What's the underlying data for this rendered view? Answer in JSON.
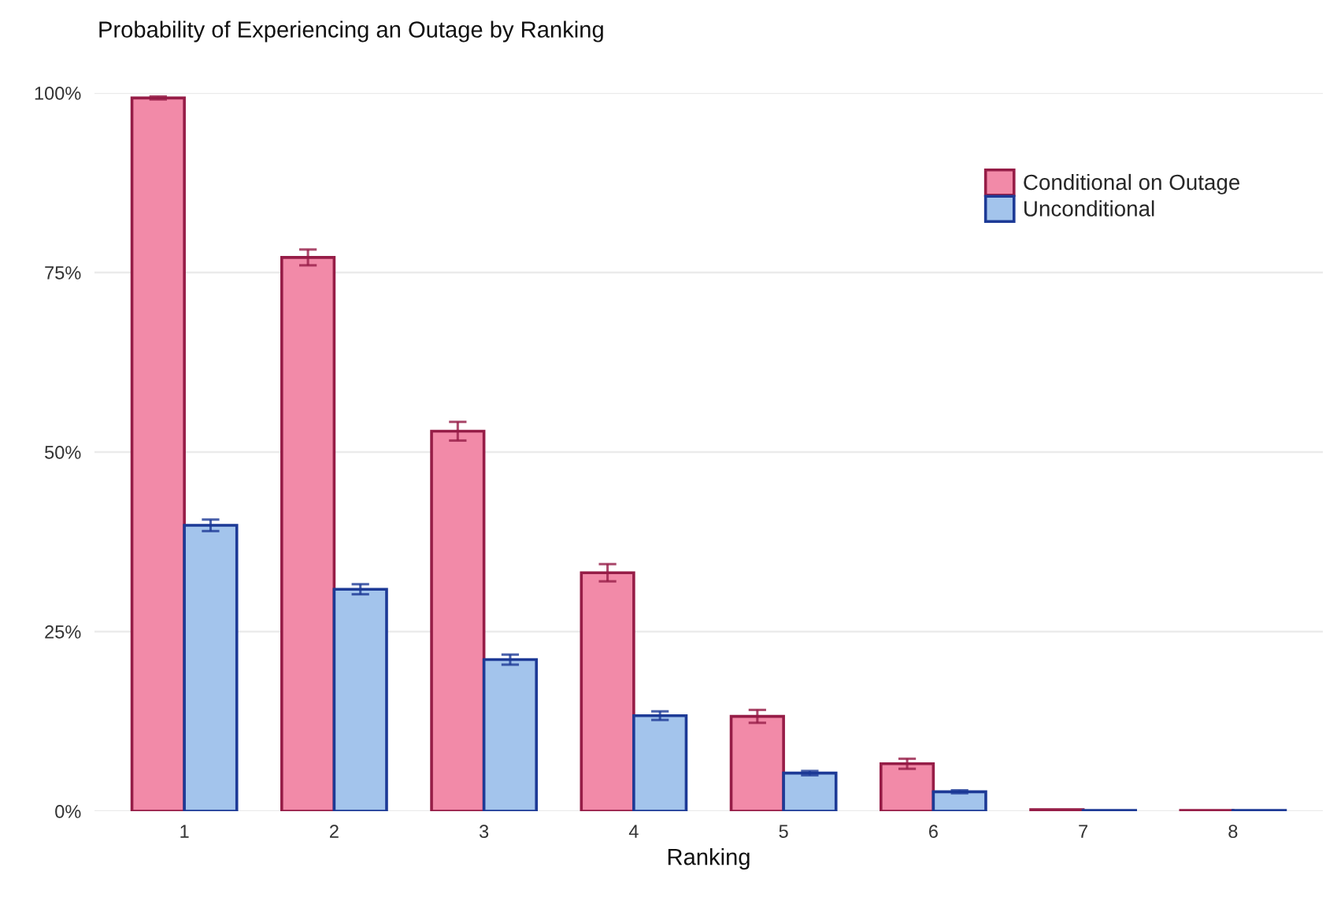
{
  "chart_data": {
    "type": "bar",
    "title": "Probability of Experiencing an Outage by Ranking",
    "xlabel": "Ranking",
    "categories": [
      "1",
      "2",
      "3",
      "4",
      "5",
      "6",
      "7",
      "8"
    ],
    "series": [
      {
        "name": "Conditional on Outage",
        "color": "#f28aa8",
        "values": [
          99.3,
          77.1,
          52.9,
          33.2,
          13.2,
          6.6,
          0.2,
          0.1
        ],
        "errors": [
          0.2,
          1.1,
          1.3,
          1.2,
          0.9,
          0.7,
          null,
          null
        ]
      },
      {
        "name": "Unconditional",
        "color": "#a3c4ec",
        "values": [
          39.8,
          30.9,
          21.1,
          13.3,
          5.3,
          2.7,
          0.1,
          0.1
        ],
        "errors": [
          0.8,
          0.7,
          0.7,
          0.6,
          0.3,
          0.2,
          null,
          null
        ]
      }
    ],
    "ylim": [
      0,
      100
    ],
    "yticks": [
      {
        "value": 0,
        "label": "0%"
      },
      {
        "value": 25,
        "label": "25%"
      },
      {
        "value": 50,
        "label": "50%"
      },
      {
        "value": 75,
        "label": "75%"
      },
      {
        "value": 100,
        "label": "100%"
      }
    ],
    "grid": "y",
    "legend": "top right"
  }
}
